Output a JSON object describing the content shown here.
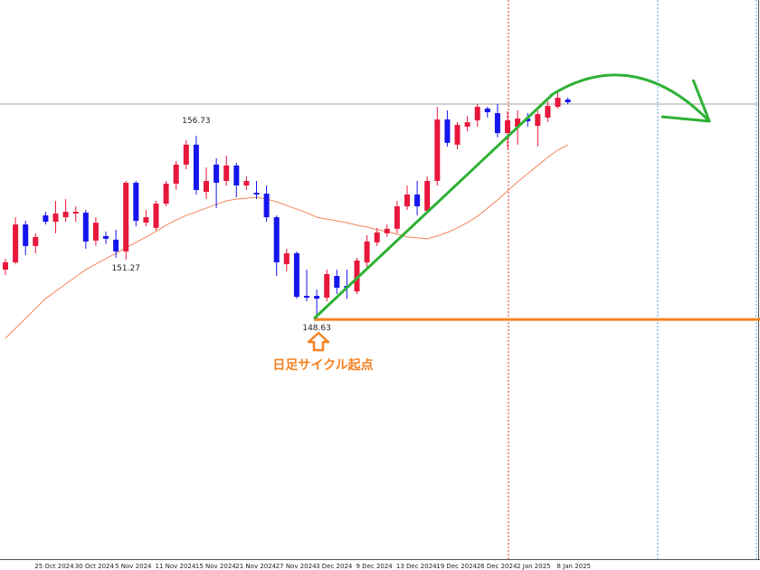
{
  "chart_data": {
    "type": "candlestick",
    "categories": [
      null,
      null,
      null,
      "25 Oct 2024",
      null,
      null,
      null,
      "30 Oct 2024",
      null,
      null,
      null,
      "5 Nov 2024",
      null,
      null,
      null,
      "11 Nov 2024",
      null,
      null,
      null,
      "15 Nov 2024",
      null,
      null,
      null,
      "21 Nov 2024",
      null,
      null,
      null,
      "27 Nov 2024",
      null,
      null,
      null,
      "3 Dec 2024",
      null,
      null,
      null,
      "9 Dec 2024",
      null,
      null,
      null,
      "13 Dec 2024",
      null,
      null,
      null,
      "19 Dec 2024",
      null,
      null,
      null,
      "26 Dec 2024",
      null,
      null,
      null,
      "2 Jan 2025",
      null,
      null,
      null,
      "8 Jan 2025",
      null
    ],
    "open": [
      150.83,
      151.15,
      152.82,
      151.87,
      153.22,
      152.94,
      153.14,
      153.3,
      153.34,
      152.11,
      152.31,
      152.15,
      151.63,
      154.66,
      152.9,
      152.67,
      153.74,
      154.62,
      155.46,
      156.34,
      154.26,
      155.46,
      154.74,
      155.42,
      154.54,
      154.22,
      154.18,
      153.14,
      151.07,
      151.55,
      149.67,
      149.67,
      149.59,
      150.55,
      150.11,
      149.87,
      151.15,
      152.03,
      152.43,
      152.63,
      153.62,
      154.14,
      153.42,
      154.74,
      157.45,
      156.34,
      157.13,
      157.41,
      157.93,
      157.73,
      156.85,
      157.13,
      157.49,
      157.17,
      157.53,
      158.01,
      158.33
    ],
    "high": [
      151.31,
      153.14,
      152.98,
      152.43,
      153.38,
      153.86,
      153.94,
      153.62,
      153.46,
      153.14,
      152.51,
      152.59,
      154.74,
      154.74,
      153.46,
      153.86,
      154.74,
      155.62,
      156.54,
      156.73,
      155.34,
      155.74,
      155.86,
      155.54,
      154.94,
      154.74,
      154.54,
      153.22,
      151.75,
      151.63,
      150.83,
      149.95,
      150.83,
      150.83,
      150.83,
      151.35,
      152.35,
      152.67,
      152.82,
      153.86,
      154.54,
      154.74,
      154.94,
      158.01,
      157.85,
      157.33,
      157.61,
      158.13,
      158.01,
      158.13,
      157.81,
      157.85,
      157.73,
      157.85,
      158.25,
      158.65,
      158.41
    ],
    "low": [
      150.59,
      151.07,
      151.47,
      151.55,
      152.82,
      152.43,
      152.94,
      152.94,
      151.75,
      151.87,
      151.95,
      151.35,
      151.27,
      152.74,
      152.74,
      152.55,
      153.62,
      154.34,
      155.26,
      154.14,
      153.94,
      153.54,
      154.54,
      154.02,
      154.34,
      153.94,
      152.94,
      150.55,
      150.75,
      149.55,
      149.43,
      148.63,
      149.43,
      149.75,
      149.55,
      149.75,
      150.95,
      151.87,
      152.27,
      152.43,
      153.46,
      153.22,
      153.34,
      154.54,
      156.26,
      156.14,
      156.93,
      157.13,
      157.53,
      156.66,
      156.14,
      156.34,
      157.13,
      156.26,
      157.33,
      157.93,
      158.13
    ],
    "close": [
      151.15,
      152.82,
      151.87,
      152.27,
      152.94,
      153.3,
      153.38,
      153.38,
      152.07,
      152.9,
      152.19,
      151.63,
      154.66,
      152.98,
      153.14,
      153.74,
      154.62,
      155.46,
      156.34,
      154.34,
      154.74,
      154.66,
      155.42,
      154.54,
      154.74,
      154.14,
      153.14,
      151.15,
      151.55,
      149.63,
      149.59,
      149.55,
      150.63,
      150.03,
      150.03,
      151.23,
      152.07,
      152.47,
      152.63,
      153.62,
      154.14,
      153.62,
      154.74,
      157.45,
      156.42,
      157.21,
      157.33,
      158.01,
      157.77,
      156.85,
      157.41,
      157.49,
      157.37,
      157.69,
      158.05,
      158.41,
      158.21
    ],
    "up_color": "#e8173c",
    "down_color": "#1515ee",
    "ma": {
      "color": "#f4845a",
      "values": [
        147.8,
        148.24,
        148.68,
        149.11,
        149.55,
        149.87,
        150.19,
        150.51,
        150.83,
        151.07,
        151.31,
        151.55,
        151.79,
        152.03,
        152.27,
        152.51,
        152.79,
        153.02,
        153.22,
        153.38,
        153.54,
        153.7,
        153.86,
        153.94,
        153.98,
        154.02,
        153.94,
        153.82,
        153.66,
        153.5,
        153.34,
        153.14,
        153.06,
        152.98,
        152.9,
        152.79,
        152.71,
        152.59,
        152.51,
        152.39,
        152.27,
        152.23,
        152.19,
        152.31,
        152.47,
        152.67,
        152.9,
        153.18,
        153.54,
        153.9,
        154.3,
        154.7,
        155.06,
        155.42,
        155.78,
        156.1,
        156.34
      ]
    },
    "ylim": [
      138.06,
      162.72
    ],
    "annotation": "日足サイクル起点",
    "annotation_color": "#f58220",
    "trend_color": "#2eb135"
  }
}
